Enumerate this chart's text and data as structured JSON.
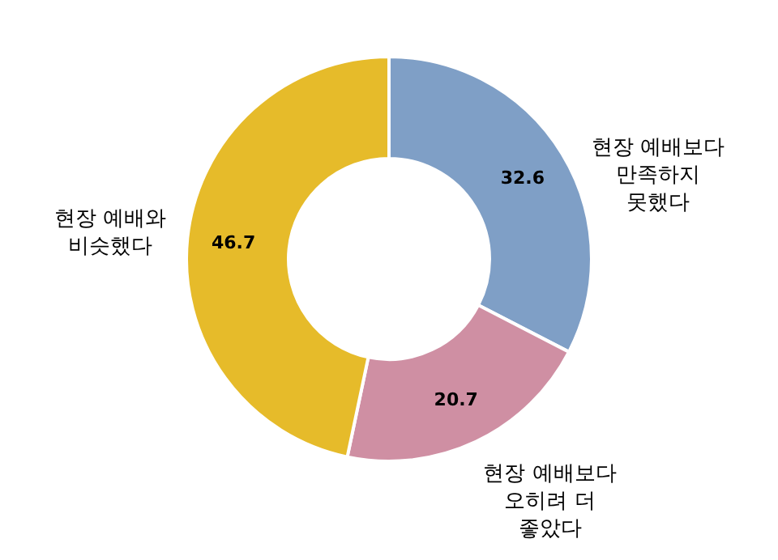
{
  "chart_data": {
    "type": "donut",
    "categories": [
      "현장 예배보다\n만족하지\n못했다",
      "현장 예배보다\n오히려 더\n좋았다",
      "현장 예배와\n비슷했다"
    ],
    "values": [
      32.6,
      20.7,
      46.7
    ],
    "colors": [
      "#7f9fc6",
      "#cf8fa3",
      "#e6bb2a"
    ],
    "data_labels": true
  }
}
